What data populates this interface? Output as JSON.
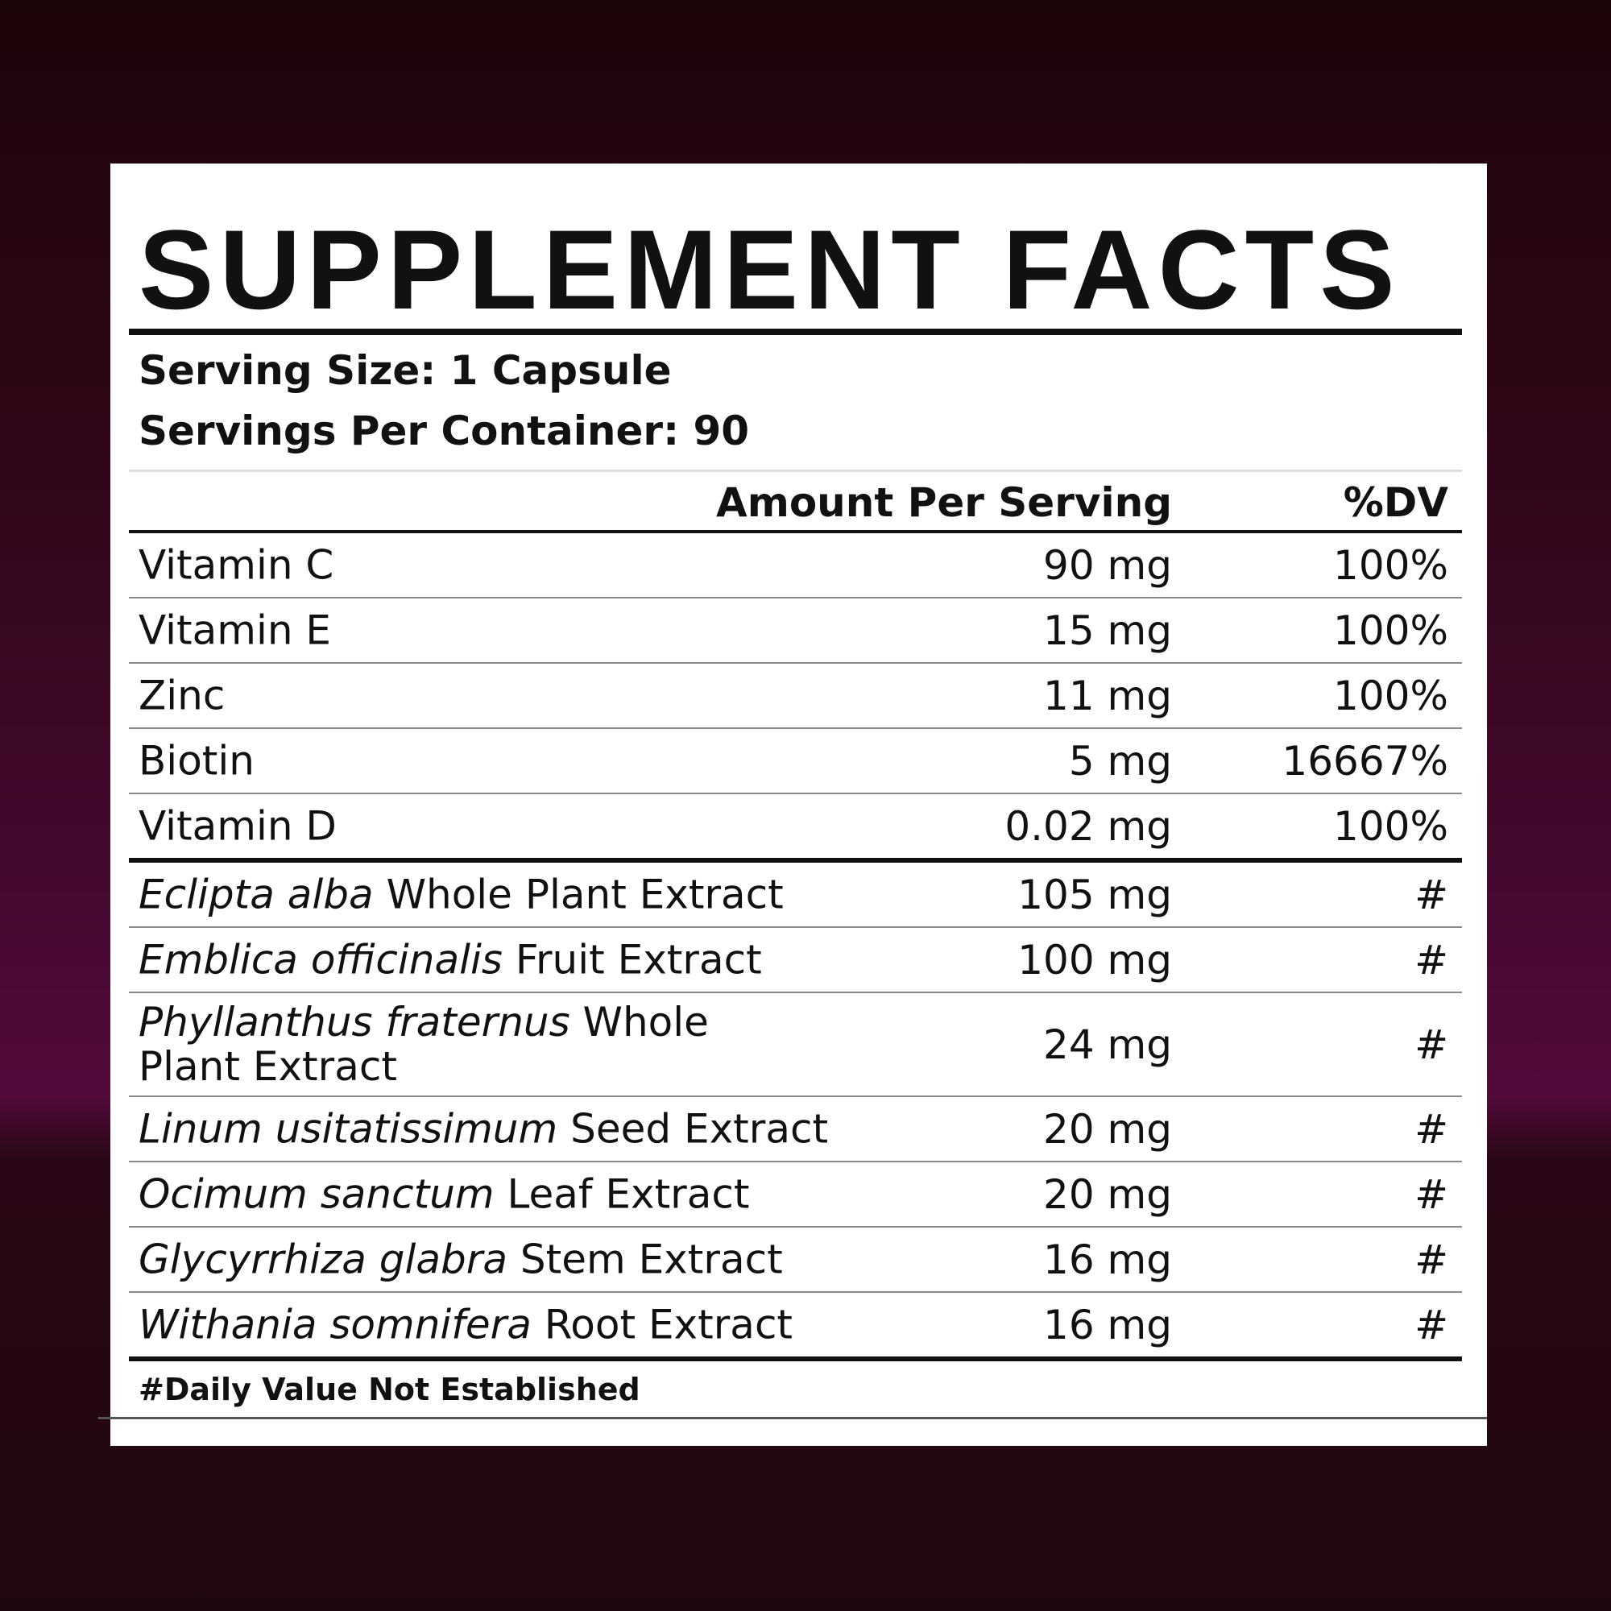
{
  "title": "SUPPLEMENT FACTS",
  "serving_size": "Serving Size: 1 Capsule",
  "servings_per_container": "Servings Per Container: 90",
  "columns": {
    "amount": "Amount Per Serving",
    "dv": "%DV"
  },
  "nutrients": [
    {
      "latin": "",
      "name": "Vitamin C",
      "amount": "90 mg",
      "dv": "100%"
    },
    {
      "latin": "",
      "name": "Vitamin E",
      "amount": "15 mg",
      "dv": "100%"
    },
    {
      "latin": "",
      "name": "Zinc",
      "amount": "11 mg",
      "dv": "100%"
    },
    {
      "latin": "",
      "name": "Biotin",
      "amount": "5 mg",
      "dv": "16667%"
    },
    {
      "latin": "",
      "name": "Vitamin D",
      "amount": "0.02 mg",
      "dv": "100%"
    },
    {
      "latin": "Eclipta alba",
      "name": "Whole Plant Extract",
      "amount": "105 mg",
      "dv": "#"
    },
    {
      "latin": "Emblica officinalis",
      "name": "Fruit Extract",
      "amount": "100 mg",
      "dv": "#"
    },
    {
      "latin": "Phyllanthus fraternus",
      "name": "Whole Plant Extract",
      "amount": "24 mg",
      "dv": "#"
    },
    {
      "latin": "Linum usitatissimum",
      "name": "Seed Extract",
      "amount": "20 mg",
      "dv": "#"
    },
    {
      "latin": "Ocimum sanctum",
      "name": "Leaf Extract",
      "amount": "20 mg",
      "dv": "#"
    },
    {
      "latin": "Glycyrrhiza glabra",
      "name": "Stem Extract",
      "amount": "16 mg",
      "dv": "#"
    },
    {
      "latin": "Withania somnifera",
      "name": "Root Extract",
      "amount": "16 mg",
      "dv": "#"
    }
  ],
  "footnote": "#Daily Value Not Established"
}
